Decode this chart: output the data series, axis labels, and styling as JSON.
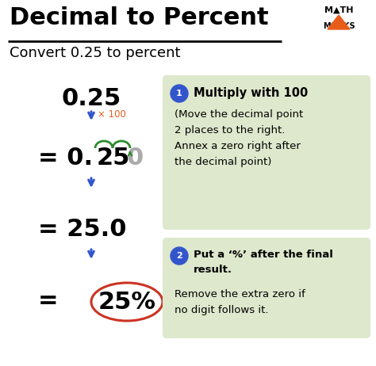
{
  "title": "Decimal to Percent",
  "subtitle": "Convert 0.25 to percent",
  "bg_color": "#ffffff",
  "title_color": "#000000",
  "subtitle_color": "#000000",
  "arrow_color": "#3355cc",
  "times100_color": "#e85c1a",
  "arc_color": "#2e8b2e",
  "circle_color": "#cc3322",
  "box_bg_color": "#dde8cc",
  "box_text_color": "#000000",
  "step_circle_color": "#3355cc",
  "box1_title": "Multiply with 100",
  "box1_body": "(Move the decimal point\n2 places to the right.\nAnnex a zero right after\nthe decimal point)",
  "box2_title": "Put a ‘%’ after the final\nresult.",
  "box2_body": "Remove the extra zero if\nno digit follows it."
}
